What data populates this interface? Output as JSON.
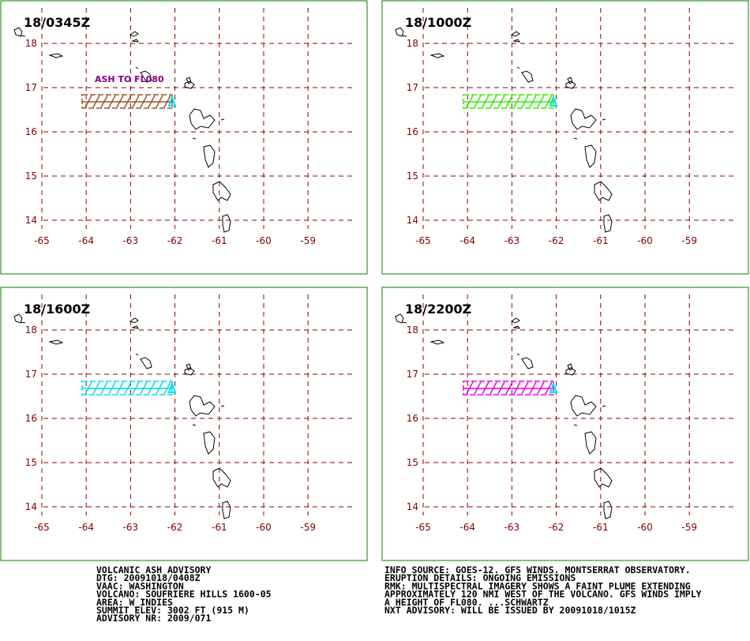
{
  "panels": [
    {
      "time": "18/0345Z",
      "color": "#a0522d",
      "annotation": "ASH TO FL080"
    },
    {
      "time": "18/1000Z",
      "color": "#33ee00"
    },
    {
      "time": "18/1600Z",
      "color": "#00e0ee"
    },
    {
      "time": "18/2200Z",
      "color": "#ee00ee"
    }
  ],
  "lon_ticks": [
    -65,
    -64,
    -63,
    -62,
    -61,
    -60,
    -59
  ],
  "lat_ticks": [
    18,
    17,
    16,
    15,
    14
  ],
  "advisory_left": [
    "VOLCANIC ASH ADVISORY",
    "DTG: 20091018/0408Z",
    "VAAC: WASHINGTON",
    "VOLCANO: SOUFRIERE HILLS 1600-05",
    "AREA: W_INDIES",
    "SUMMIT ELEV: 3002 FT (915 M)",
    "ADVISORY NR: 2009/071"
  ],
  "advisory_right": [
    "INFO SOURCE: GOES-12. GFS WINDS. MONTSERRAT OBSERVATORY.",
    "ERUPTION DETAILS: ONGOING EMISSIONS",
    "RMK: MULTISPECTRAL IMAGERY SHOWS A FAINT PLUME EXTENDING",
    "APPROXIMATELY 120 NMI WEST OF THE VOLCANO. GFS WINDS IMPLY",
    "A HEIGHT OF FL080. ...SCHWARTZ",
    "NXT ADVISORY: WILL BE ISSUED BY 20091018/1015Z"
  ]
}
